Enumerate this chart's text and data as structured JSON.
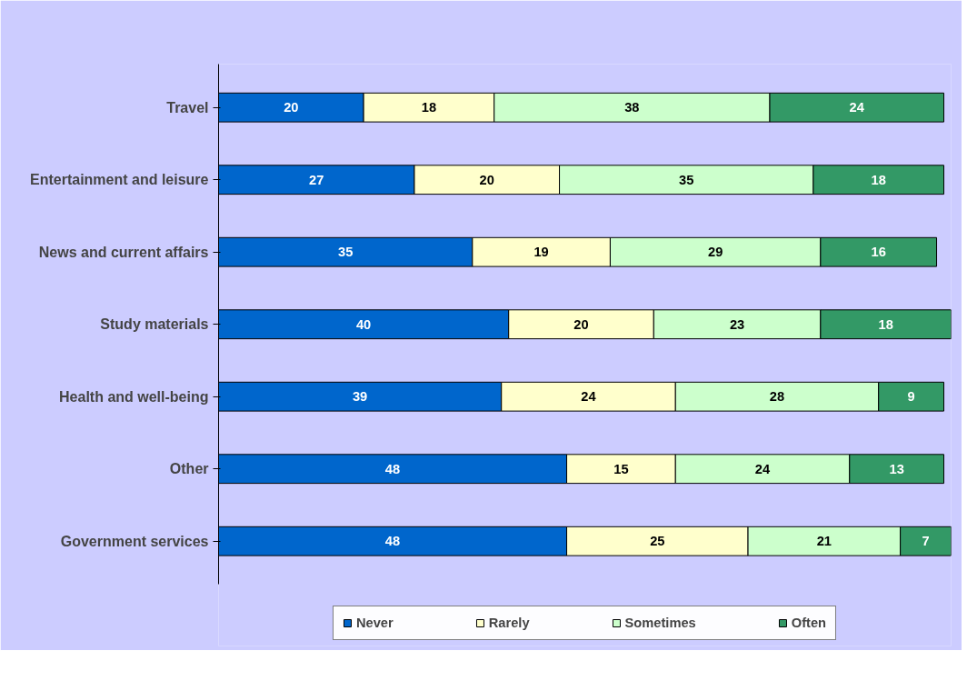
{
  "chart_data": {
    "type": "bar",
    "orientation": "horizontal",
    "stacked": true,
    "data_labels": true,
    "grid": false,
    "legend": "bottom",
    "categories": [
      "Travel",
      "Entertainment and leisure",
      "News and current affairs",
      "Study materials",
      "Health and well-being",
      "Other",
      "Government services"
    ],
    "series": [
      {
        "name": "Never",
        "color": "#0066cc",
        "values": [
          20,
          27,
          35,
          40,
          39,
          48,
          48
        ]
      },
      {
        "name": "Rarely",
        "color": "#ffffcc",
        "values": [
          18,
          20,
          19,
          20,
          24,
          15,
          25
        ]
      },
      {
        "name": "Sometimes",
        "color": "#ccffcc",
        "values": [
          38,
          35,
          29,
          23,
          28,
          24,
          21
        ]
      },
      {
        "name": "Often",
        "color": "#339966",
        "values": [
          24,
          18,
          16,
          18,
          9,
          13,
          7
        ]
      }
    ]
  }
}
